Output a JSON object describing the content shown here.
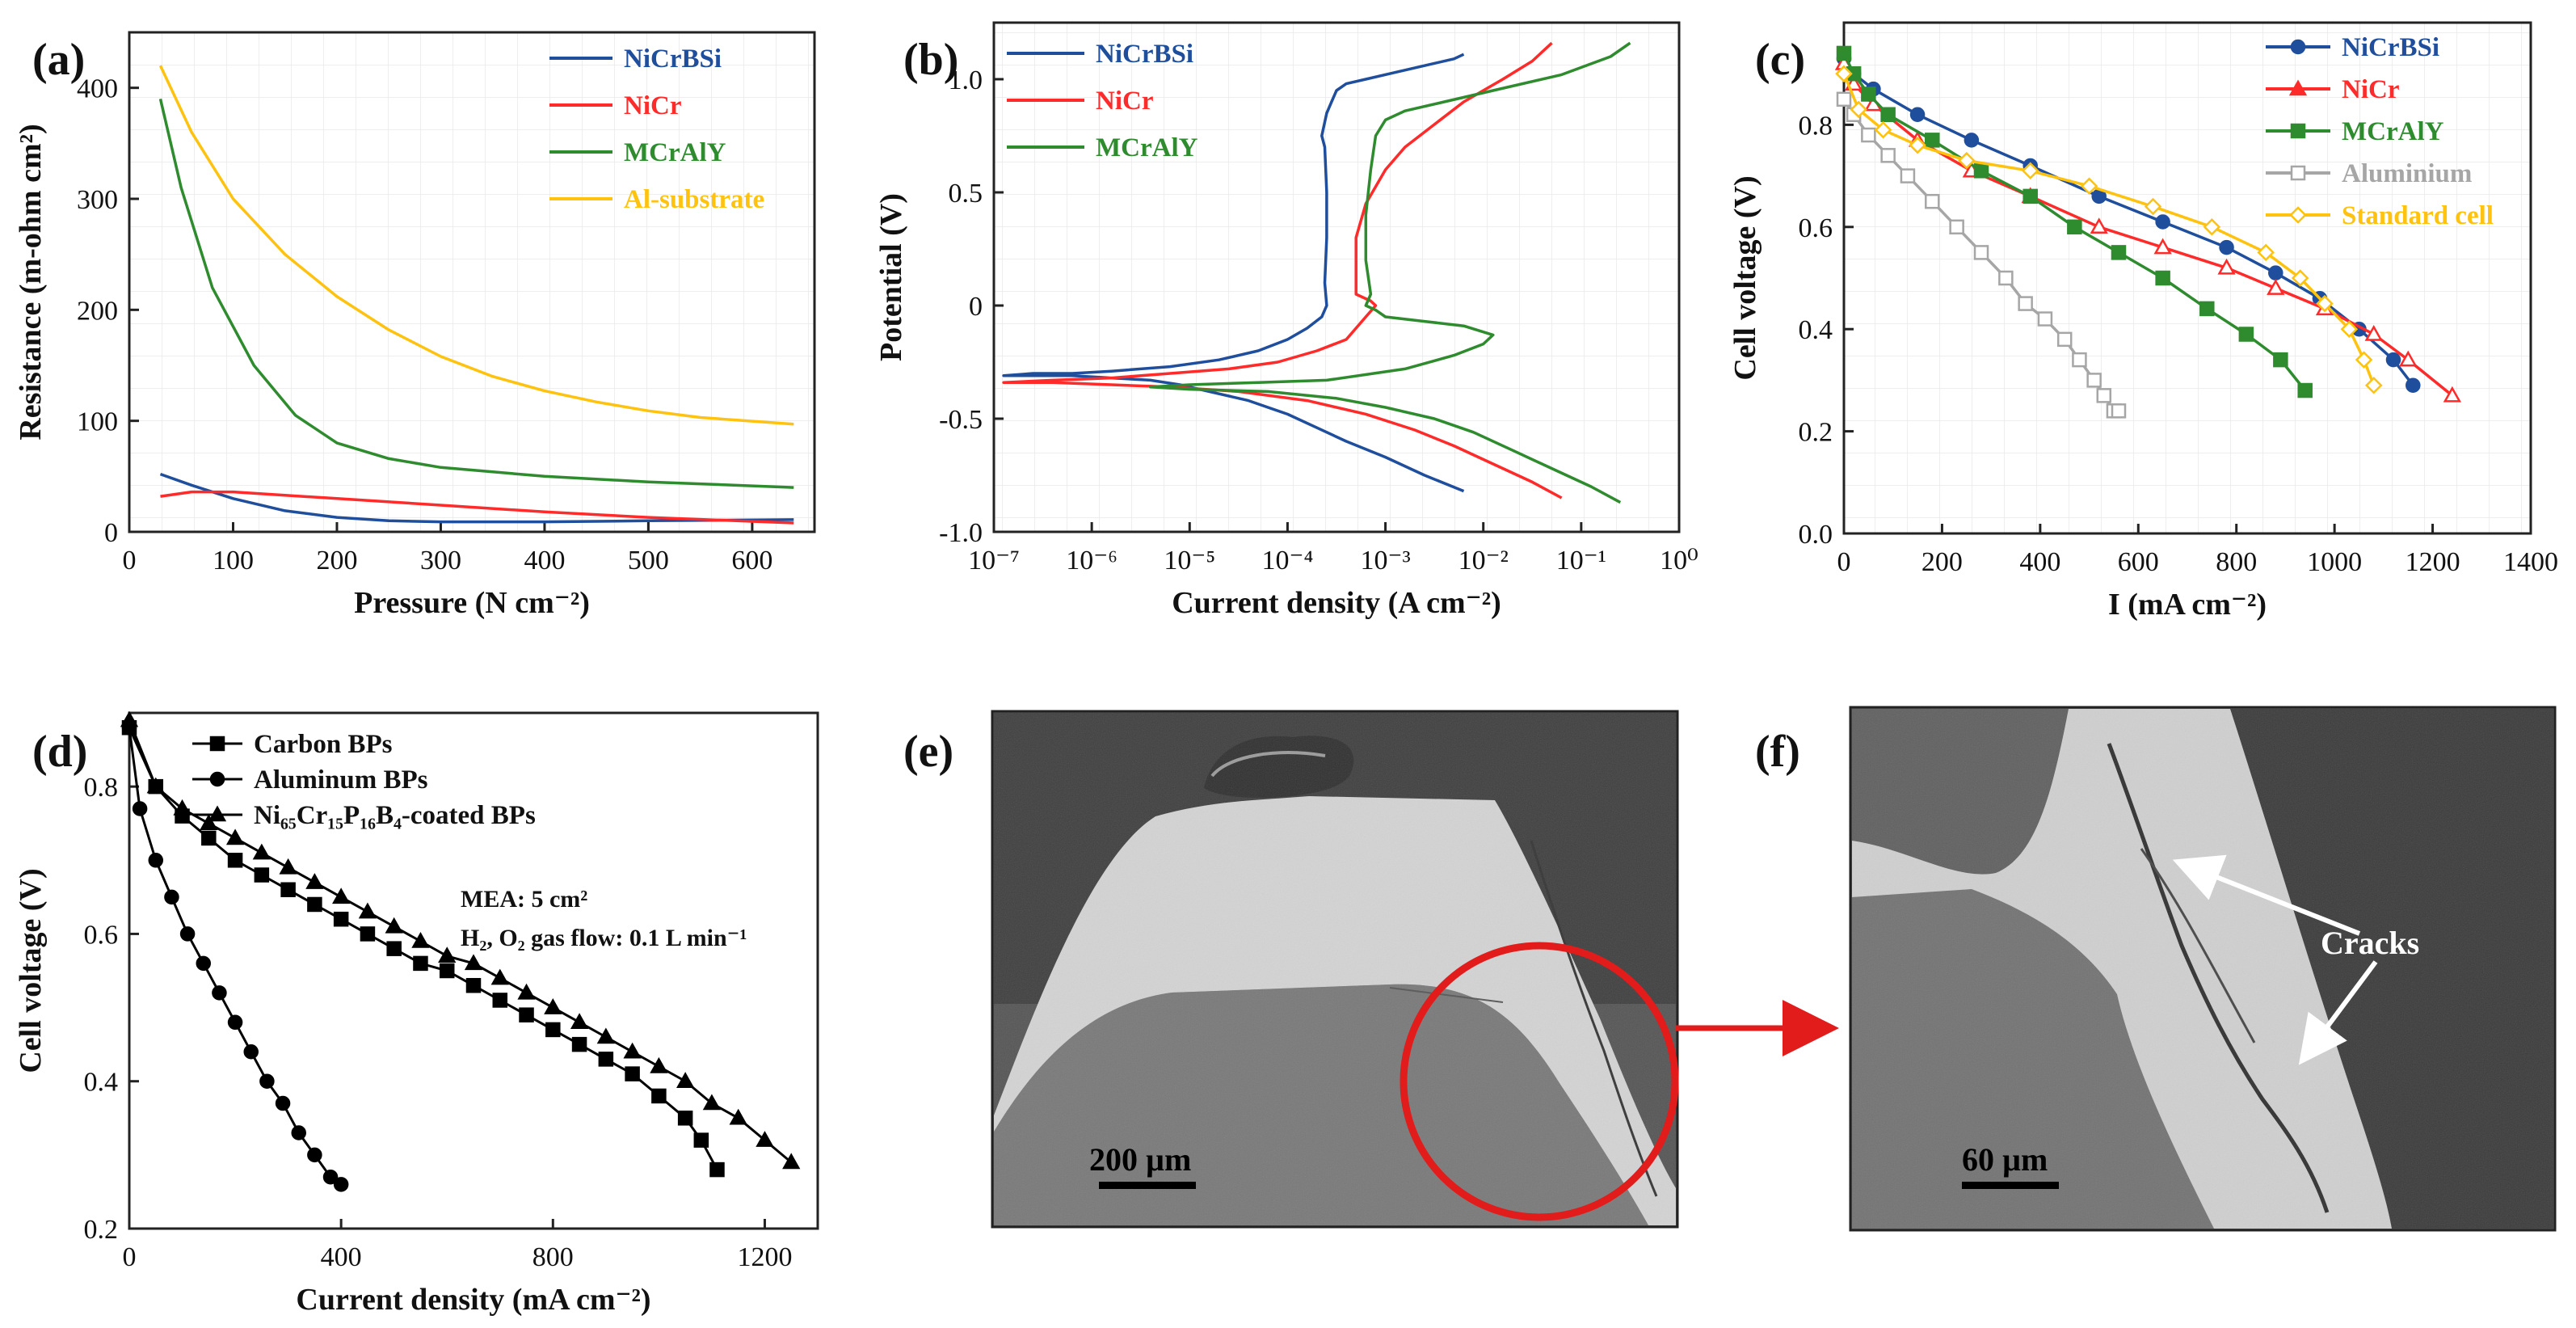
{
  "chart_data": [
    {
      "panel": "(a)",
      "type": "line",
      "xlabel": "Pressure (N cm⁻²)",
      "ylabel": "Resistance (m-ohm cm²)",
      "xlim": [
        0,
        660
      ],
      "ylim": [
        0,
        450
      ],
      "xticks": [
        "0",
        "100",
        "200",
        "300",
        "400",
        "500",
        "600"
      ],
      "yticks": [
        "0",
        "100",
        "200",
        "300",
        "400"
      ],
      "series": [
        {
          "name": "NiCrBSi",
          "color": "#1f4e9c",
          "x": [
            30,
            60,
            100,
            150,
            200,
            250,
            300,
            400,
            500,
            640
          ],
          "y": [
            52,
            42,
            30,
            19,
            13,
            10,
            9,
            9,
            10,
            11
          ]
        },
        {
          "name": "NiCr",
          "color": "#ff2a2a",
          "x": [
            30,
            60,
            100,
            150,
            200,
            300,
            400,
            500,
            640
          ],
          "y": [
            32,
            36,
            36,
            33,
            30,
            24,
            18,
            13,
            8
          ]
        },
        {
          "name": "MCrAlY",
          "color": "#2e8b2e",
          "x": [
            30,
            50,
            80,
            120,
            160,
            200,
            250,
            300,
            400,
            500,
            640
          ],
          "y": [
            390,
            310,
            220,
            150,
            105,
            80,
            66,
            58,
            50,
            45,
            40
          ]
        },
        {
          "name": "Al-substrate",
          "color": "#ffc20e",
          "x": [
            30,
            60,
            100,
            150,
            200,
            250,
            300,
            350,
            400,
            450,
            500,
            550,
            640
          ],
          "y": [
            420,
            360,
            300,
            250,
            212,
            182,
            158,
            140,
            127,
            117,
            109,
            103,
            97
          ]
        }
      ]
    },
    {
      "panel": "(b)",
      "type": "line",
      "xlabel": "Current density (A cm⁻²)",
      "ylabel": "Potential (V)",
      "xlim_log10": [
        -7,
        0
      ],
      "ylim": [
        -1.0,
        1.25
      ],
      "xticks": [
        "10⁻⁷",
        "10⁻⁶",
        "10⁻⁵",
        "10⁻⁴",
        "10⁻³",
        "10⁻²",
        "10⁻¹",
        "10⁰"
      ],
      "yticks": [
        "-1.0",
        "-0.5",
        "0",
        "0.5",
        "1.0"
      ],
      "series": [
        {
          "name": "NiCrBSi",
          "color": "#1f4e9c",
          "logx": [
            -2.2,
            -2.6,
            -3.0,
            -3.4,
            -3.7,
            -4.0,
            -4.4,
            -4.8,
            -5.1,
            -5.4,
            -5.8,
            -6.2,
            -6.6,
            -6.9,
            -6.6,
            -6.2,
            -5.8,
            -5.2,
            -4.7,
            -4.3,
            -4.0,
            -3.8,
            -3.65,
            -3.6,
            -3.62,
            -3.6,
            -3.6,
            -3.62,
            -3.65,
            -3.6,
            -3.55,
            -3.5,
            -3.4,
            -3.2,
            -2.9,
            -2.6,
            -2.3,
            -2.2
          ],
          "y": [
            -0.82,
            -0.75,
            -0.67,
            -0.6,
            -0.54,
            -0.48,
            -0.42,
            -0.38,
            -0.35,
            -0.33,
            -0.32,
            -0.31,
            -0.31,
            -0.31,
            -0.3,
            -0.3,
            -0.29,
            -0.27,
            -0.24,
            -0.2,
            -0.15,
            -0.1,
            -0.05,
            0.0,
            0.1,
            0.3,
            0.5,
            0.7,
            0.75,
            0.85,
            0.9,
            0.95,
            0.98,
            1.0,
            1.03,
            1.06,
            1.09,
            1.11
          ]
        },
        {
          "name": "NiCr",
          "color": "#ff2a2a",
          "logx": [
            -1.2,
            -1.5,
            -1.9,
            -2.3,
            -2.7,
            -3.2,
            -3.8,
            -4.5,
            -5.2,
            -5.8,
            -6.4,
            -6.9,
            -6.4,
            -5.8,
            -5.2,
            -4.6,
            -4.1,
            -3.7,
            -3.4,
            -3.3,
            -3.2,
            -3.1,
            -3.15,
            -3.3,
            -3.3,
            -3.2,
            -3.0,
            -2.8,
            -2.5,
            -2.2,
            -1.8,
            -1.5,
            -1.3
          ],
          "y": [
            -0.85,
            -0.78,
            -0.7,
            -0.62,
            -0.55,
            -0.48,
            -0.42,
            -0.38,
            -0.36,
            -0.35,
            -0.34,
            -0.34,
            -0.33,
            -0.32,
            -0.3,
            -0.28,
            -0.25,
            -0.2,
            -0.15,
            -0.1,
            -0.05,
            0.0,
            0.02,
            0.05,
            0.3,
            0.45,
            0.6,
            0.7,
            0.8,
            0.9,
            1.0,
            1.08,
            1.16
          ]
        },
        {
          "name": "MCrAlY",
          "color": "#2e8b2e",
          "logx": [
            -0.6,
            -0.9,
            -1.3,
            -1.7,
            -2.1,
            -2.5,
            -3.0,
            -3.5,
            -4.2,
            -5.0,
            -5.4,
            -5.0,
            -4.3,
            -3.6,
            -2.8,
            -2.3,
            -2.0,
            -1.9,
            -2.2,
            -2.6,
            -3.0,
            -3.1,
            -3.2,
            -3.15,
            -3.2,
            -3.2,
            -3.15,
            -3.1,
            -3.0,
            -2.8,
            -2.4,
            -1.9,
            -1.2,
            -0.7,
            -0.5
          ],
          "y": [
            -0.87,
            -0.8,
            -0.72,
            -0.64,
            -0.56,
            -0.5,
            -0.45,
            -0.41,
            -0.38,
            -0.37,
            -0.36,
            -0.35,
            -0.34,
            -0.33,
            -0.28,
            -0.22,
            -0.17,
            -0.13,
            -0.09,
            -0.07,
            -0.05,
            -0.02,
            0.0,
            0.05,
            0.2,
            0.4,
            0.6,
            0.75,
            0.82,
            0.86,
            0.9,
            0.95,
            1.02,
            1.1,
            1.16
          ]
        }
      ]
    },
    {
      "panel": "(c)",
      "type": "line",
      "xlabel": "I (mA cm⁻²)",
      "ylabel": "Cell voltage (V)",
      "xlim": [
        0,
        1400
      ],
      "ylim": [
        0,
        1.0
      ],
      "xticks": [
        "0",
        "200",
        "400",
        "600",
        "800",
        "1000",
        "1200",
        "1400"
      ],
      "yticks": [
        "0.0",
        "0.2",
        "0.4",
        "0.6",
        "0.8"
      ],
      "series": [
        {
          "name": "NiCrBSi",
          "color": "#1f4e9c",
          "marker": "circle",
          "x": [
            0,
            20,
            60,
            150,
            260,
            380,
            520,
            650,
            780,
            880,
            970,
            1050,
            1120,
            1160
          ],
          "y": [
            0.93,
            0.9,
            0.87,
            0.82,
            0.77,
            0.72,
            0.66,
            0.61,
            0.56,
            0.51,
            0.46,
            0.4,
            0.34,
            0.29
          ]
        },
        {
          "name": "NiCr",
          "color": "#ff2a2a",
          "marker": "triangle",
          "x": [
            0,
            20,
            60,
            150,
            260,
            380,
            520,
            650,
            780,
            880,
            980,
            1080,
            1150,
            1240
          ],
          "y": [
            0.92,
            0.88,
            0.84,
            0.77,
            0.71,
            0.66,
            0.6,
            0.56,
            0.52,
            0.48,
            0.44,
            0.39,
            0.34,
            0.27
          ]
        },
        {
          "name": "MCrAlY",
          "color": "#2e8b2e",
          "marker": "square",
          "x": [
            0,
            20,
            50,
            90,
            180,
            280,
            380,
            470,
            560,
            650,
            740,
            820,
            890,
            940
          ],
          "y": [
            0.94,
            0.9,
            0.86,
            0.82,
            0.77,
            0.71,
            0.66,
            0.6,
            0.55,
            0.5,
            0.44,
            0.39,
            0.34,
            0.28
          ]
        },
        {
          "name": "Aluminium",
          "color": "#a6a6a6",
          "marker": "square",
          "x": [
            0,
            20,
            50,
            90,
            130,
            180,
            230,
            280,
            330,
            370,
            410,
            450,
            480,
            510,
            530,
            550,
            560
          ],
          "y": [
            0.85,
            0.82,
            0.78,
            0.74,
            0.7,
            0.65,
            0.6,
            0.55,
            0.5,
            0.45,
            0.42,
            0.38,
            0.34,
            0.3,
            0.27,
            0.24,
            0.24
          ]
        },
        {
          "name": "Standard cell",
          "color": "#ffc20e",
          "marker": "diamond",
          "x": [
            0,
            30,
            80,
            150,
            250,
            380,
            500,
            630,
            750,
            860,
            930,
            980,
            1030,
            1060,
            1080
          ],
          "y": [
            0.9,
            0.83,
            0.79,
            0.76,
            0.73,
            0.71,
            0.68,
            0.64,
            0.6,
            0.55,
            0.5,
            0.45,
            0.4,
            0.34,
            0.29
          ]
        }
      ]
    },
    {
      "panel": "(d)",
      "type": "line",
      "xlabel": "Current density (mA cm⁻²)",
      "ylabel": "Cell voltage (V)",
      "xlim": [
        0,
        1300
      ],
      "ylim": [
        0.2,
        0.9
      ],
      "xticks": [
        "0",
        "400",
        "800",
        "1200"
      ],
      "yticks": [
        "0.2",
        "0.4",
        "0.6",
        "0.8"
      ],
      "annotation_line1": "MEA: 5 cm²",
      "annotation_line2": "H₂, O₂ gas flow: 0.1 L min⁻¹",
      "series": [
        {
          "name": "Carbon BPs",
          "color": "#000000",
          "marker": "square",
          "x": [
            0,
            50,
            100,
            150,
            200,
            250,
            300,
            350,
            400,
            450,
            500,
            550,
            600,
            650,
            700,
            750,
            800,
            850,
            900,
            950,
            1000,
            1050,
            1080,
            1110
          ],
          "y": [
            0.88,
            0.8,
            0.76,
            0.73,
            0.7,
            0.68,
            0.66,
            0.64,
            0.62,
            0.6,
            0.58,
            0.56,
            0.55,
            0.53,
            0.51,
            0.49,
            0.47,
            0.45,
            0.43,
            0.41,
            0.38,
            0.35,
            0.32,
            0.28
          ]
        },
        {
          "name": "Aluminum BPs",
          "color": "#000000",
          "marker": "circle",
          "x": [
            0,
            20,
            50,
            80,
            110,
            140,
            170,
            200,
            230,
            260,
            290,
            320,
            350,
            380,
            400
          ],
          "y": [
            0.88,
            0.77,
            0.7,
            0.65,
            0.6,
            0.56,
            0.52,
            0.48,
            0.44,
            0.4,
            0.37,
            0.33,
            0.3,
            0.27,
            0.26
          ]
        },
        {
          "name": "Ni₆₅Cr₁₅P₁₆B₄-coated BPs",
          "color": "#000000",
          "marker": "triangle",
          "x": [
            0,
            50,
            100,
            150,
            200,
            250,
            300,
            350,
            400,
            450,
            500,
            550,
            600,
            650,
            700,
            750,
            800,
            850,
            900,
            950,
            1000,
            1050,
            1100,
            1150,
            1200,
            1250
          ],
          "y": [
            0.89,
            0.8,
            0.77,
            0.75,
            0.73,
            0.71,
            0.69,
            0.67,
            0.65,
            0.63,
            0.61,
            0.59,
            0.57,
            0.56,
            0.54,
            0.52,
            0.5,
            0.48,
            0.46,
            0.44,
            0.42,
            0.4,
            0.37,
            0.35,
            0.32,
            0.29
          ]
        }
      ]
    },
    {
      "panel": "(e)",
      "type": "image",
      "scale_bar_label": "200 µm"
    },
    {
      "panel": "(f)",
      "type": "image",
      "scale_bar_label": "60 µm",
      "annotation": "Cracks"
    }
  ]
}
